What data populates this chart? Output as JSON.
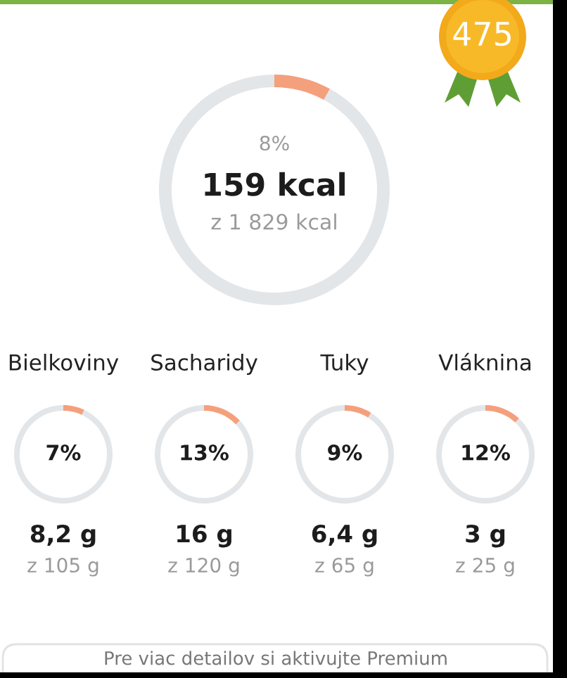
{
  "chart_data": [
    {
      "type": "other",
      "annotations": [
        "475"
      ]
    },
    {
      "type": "donut",
      "categories": [
        null,
        null
      ],
      "values": [
        8,
        92
      ],
      "colors": [
        "#f4a07c",
        "#e3e6e9"
      ],
      "value_labels": [
        "8%",
        null
      ],
      "annotations": [
        "159 kcal",
        "z 1 829 kcal"
      ]
    },
    {
      "type": "donut",
      "title": "Bielkoviny",
      "categories": [
        null,
        null
      ],
      "values": [
        7,
        93
      ],
      "colors": [
        "#f4a07c",
        "#e3e6e9"
      ],
      "value_labels": [
        "7%",
        null
      ],
      "annotations": [
        "8,2 g",
        "z 105 g"
      ]
    },
    {
      "type": "donut",
      "title": "Sacharidy",
      "categories": [
        null,
        null
      ],
      "values": [
        13,
        87
      ],
      "colors": [
        "#f4a07c",
        "#e3e6e9"
      ],
      "value_labels": [
        "13%",
        null
      ],
      "annotations": [
        "16 g",
        "z 120 g"
      ]
    },
    {
      "type": "donut",
      "title": "Tuky",
      "categories": [
        null,
        null
      ],
      "values": [
        9,
        91
      ],
      "colors": [
        "#f4a07c",
        "#e3e6e9"
      ],
      "value_labels": [
        "9%",
        null
      ],
      "annotations": [
        "6,4 g",
        "z 65 g"
      ]
    },
    {
      "type": "donut",
      "title": "Vláknina",
      "categories": [
        null,
        null
      ],
      "values": [
        12,
        88
      ],
      "colors": [
        "#f4a07c",
        "#e3e6e9"
      ],
      "value_labels": [
        "12%",
        null
      ],
      "annotations": [
        "3 g",
        "z 25 g"
      ]
    },
    {
      "type": "other",
      "annotations": [
        "Pre viac detailov si aktivujte Premium"
      ]
    }
  ]
}
